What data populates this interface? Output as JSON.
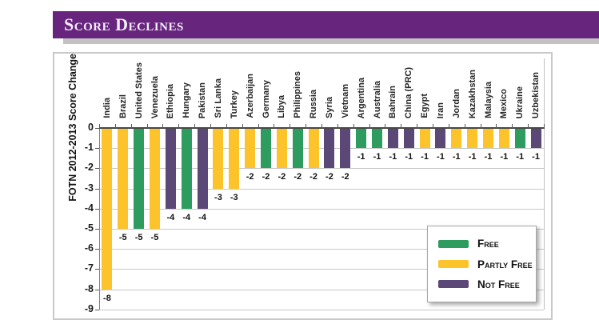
{
  "header": {
    "title": "Score Declines",
    "banner_color": "#67257E",
    "shadow_color": "#C2C2C2"
  },
  "chart_data": {
    "type": "bar",
    "title": "Score Declines",
    "ylabel": "FOTN 2012-2013 Score Change",
    "xlabel": "",
    "ylim": [
      -9,
      0
    ],
    "yticks": [
      0,
      -1,
      -2,
      -3,
      -4,
      -5,
      -6,
      -7,
      -8,
      -9
    ],
    "grid": true,
    "bar_value_labels": true,
    "legend_position": "inside-right",
    "status_colors": {
      "free": "#2E9B5F",
      "partly_free": "#FCC42A",
      "not_free": "#5C4876"
    },
    "legend": [
      {
        "key": "free",
        "label": "Free"
      },
      {
        "key": "partly_free",
        "label": "Partly Free"
      },
      {
        "key": "not_free",
        "label": "Not Free"
      }
    ],
    "categories": [
      "India",
      "Brazil",
      "United States",
      "Venezuela",
      "Ethiopia",
      "Hungary",
      "Pakistan",
      "Sri Lanka",
      "Turkey",
      "Azerbaijan",
      "Germany",
      "Libya",
      "Philippines",
      "Russia",
      "Syria",
      "Vietnam",
      "Argentina",
      "Australia",
      "Bahrain",
      "China (PRC)",
      "Egypt",
      "Iran",
      "Jordan",
      "Kazakhstan",
      "Malaysia",
      "Mexico",
      "Ukraine",
      "Uzbekistan"
    ],
    "values": [
      -8,
      -5,
      -5,
      -5,
      -4,
      -4,
      -4,
      -3,
      -3,
      -2,
      -2,
      -2,
      -2,
      -2,
      -2,
      -2,
      -1,
      -1,
      -1,
      -1,
      -1,
      -1,
      -1,
      -1,
      -1,
      -1,
      -1,
      -1
    ],
    "statuses": [
      "partly_free",
      "partly_free",
      "free",
      "partly_free",
      "not_free",
      "free",
      "not_free",
      "partly_free",
      "partly_free",
      "partly_free",
      "free",
      "partly_free",
      "free",
      "partly_free",
      "not_free",
      "not_free",
      "free",
      "free",
      "not_free",
      "not_free",
      "partly_free",
      "not_free",
      "partly_free",
      "partly_free",
      "partly_free",
      "partly_free",
      "free",
      "not_free"
    ]
  }
}
